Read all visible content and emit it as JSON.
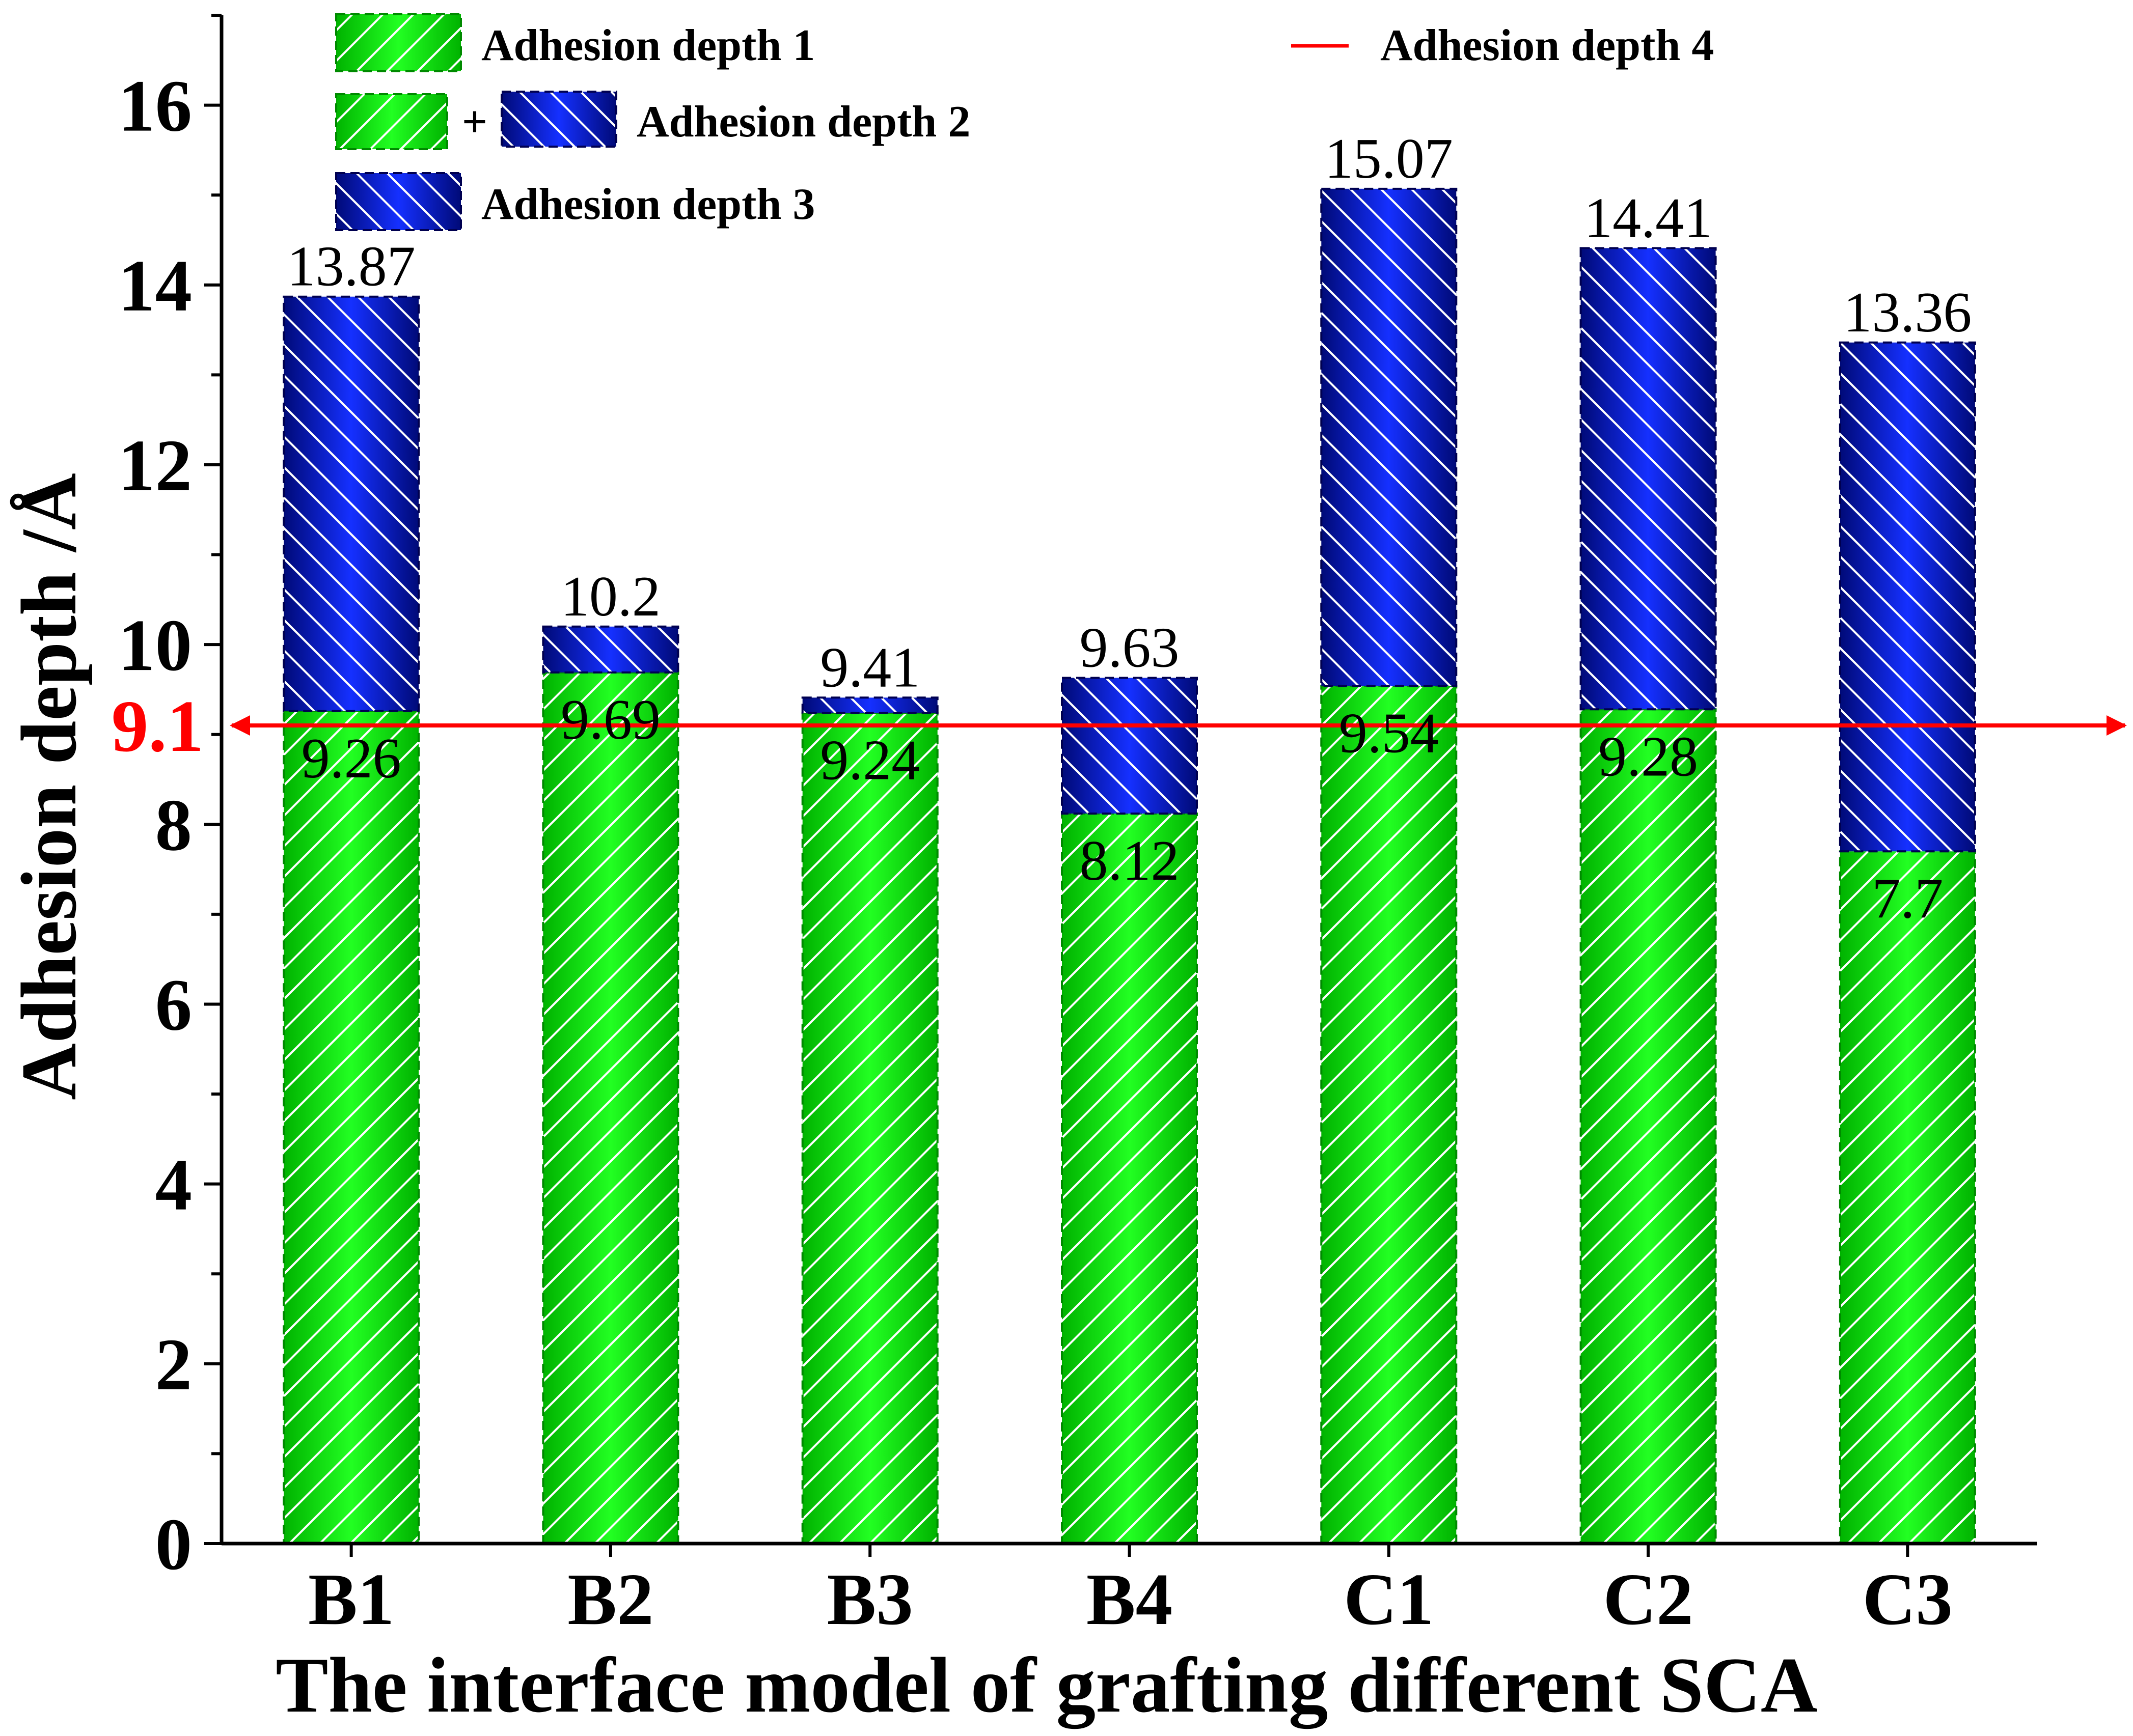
{
  "chart_data": {
    "type": "bar",
    "stacked": true,
    "title": "",
    "xlabel": "The interface model of grafting different SCA",
    "ylabel": "Adhesion depth /Å",
    "ylim": [
      0,
      17
    ],
    "yticks": [
      "0",
      "2",
      "4",
      "6",
      "8",
      "10",
      "12",
      "14",
      "16"
    ],
    "categories": [
      "B1",
      "B2",
      "B3",
      "B4",
      "C1",
      "C2",
      "C3"
    ],
    "series": [
      {
        "name": "Adhesion depth 1",
        "color": "#00dd00",
        "values": [
          9.26,
          9.69,
          9.24,
          8.12,
          9.54,
          9.28,
          7.7
        ]
      },
      {
        "name": "Adhesion depth 3",
        "color": "#0a1ab4",
        "values": [
          4.61,
          0.51,
          0.17,
          1.51,
          5.53,
          5.13,
          5.66
        ]
      }
    ],
    "bottom_labels": [
      "9.26",
      "9.69",
      "9.24",
      "8.12",
      "9.54",
      "9.28",
      "7.7"
    ],
    "top_labels": [
      "13.87",
      "10.2",
      "9.41",
      "9.63",
      "15.07",
      "14.41",
      "13.36"
    ],
    "reference_line": {
      "name": "Adhesion depth 4",
      "value": 9.1,
      "label": "9.1",
      "color": "#ff0000"
    },
    "legend": {
      "placement": "top",
      "entry1": "Adhesion depth 1",
      "entry2_plus": "+",
      "entry2": "Adhesion depth 2",
      "entry3": "Adhesion depth 3",
      "entry4": "Adhesion depth 4"
    }
  }
}
